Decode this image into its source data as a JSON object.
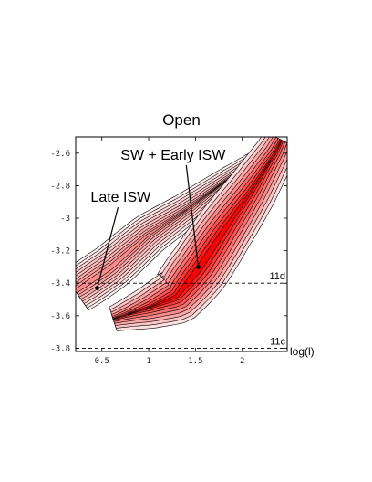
{
  "chart_data": {
    "type": "heatmap",
    "title": "Open",
    "xlabel": "log(l)",
    "ylabel": "",
    "xlim": [
      0.22,
      2.48
    ],
    "ylim": [
      -3.82,
      -2.5
    ],
    "xticks": [
      0.5,
      1,
      1.5,
      2
    ],
    "xtick_labels": [
      "0.5",
      "1",
      "1.5",
      "2"
    ],
    "yticks": [
      -2.6,
      -2.8,
      -3,
      -3.2,
      -3.4,
      -3.6,
      -3.8
    ],
    "ytick_labels": [
      "-2.6",
      "-2.8",
      "-3",
      "-3.2",
      "-3.4",
      "-3.6",
      "-3.8"
    ],
    "colormap": [
      "#ffffff",
      "#ff0000"
    ],
    "contour_line_color": "#000000",
    "components": [
      {
        "name": "Late ISW",
        "ridge": [
          [
            0.22,
            -3.45
          ],
          [
            0.6,
            -3.3
          ],
          [
            1.0,
            -3.1
          ],
          [
            1.4,
            -2.95
          ],
          [
            1.8,
            -2.78
          ],
          [
            2.2,
            -2.62
          ],
          [
            2.35,
            -2.56
          ]
        ],
        "peak": [
          0.45,
          -3.43
        ],
        "peak_value": 0.45
      },
      {
        "name": "SW + Early ISW",
        "ridge": [
          [
            0.62,
            -3.62
          ],
          [
            1.0,
            -3.55
          ],
          [
            1.3,
            -3.48
          ],
          [
            1.55,
            -3.3
          ],
          [
            1.8,
            -3.08
          ],
          [
            2.1,
            -2.83
          ],
          [
            2.35,
            -2.6
          ],
          [
            2.42,
            -2.52
          ]
        ],
        "peak": [
          1.53,
          -3.3
        ],
        "peak_value": 1.0
      }
    ],
    "annotations": [
      {
        "text": "SW + Early ISW",
        "text_pos": [
          0.7,
          -2.64
        ],
        "points_to": [
          1.53,
          -3.3
        ]
      },
      {
        "text": "Late ISW",
        "text_pos": [
          0.38,
          -2.9
        ],
        "points_to": [
          0.45,
          -3.43
        ]
      }
    ],
    "reference_lines": [
      {
        "label": "11d",
        "y": -3.4,
        "style": "dashed"
      },
      {
        "label": "11c",
        "y": -3.8,
        "style": "dashed"
      }
    ],
    "grid": false
  }
}
